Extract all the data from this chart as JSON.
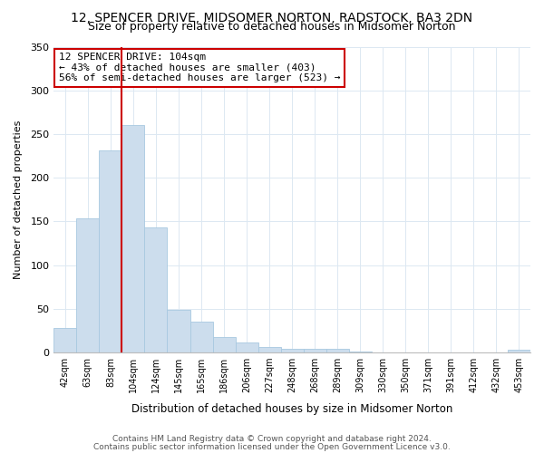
{
  "title": "12, SPENCER DRIVE, MIDSOMER NORTON, RADSTOCK, BA3 2DN",
  "subtitle": "Size of property relative to detached houses in Midsomer Norton",
  "xlabel": "Distribution of detached houses by size in Midsomer Norton",
  "ylabel": "Number of detached properties",
  "bar_labels": [
    "42sqm",
    "63sqm",
    "83sqm",
    "104sqm",
    "124sqm",
    "145sqm",
    "165sqm",
    "186sqm",
    "206sqm",
    "227sqm",
    "248sqm",
    "268sqm",
    "289sqm",
    "309sqm",
    "330sqm",
    "350sqm",
    "371sqm",
    "391sqm",
    "412sqm",
    "432sqm",
    "453sqm"
  ],
  "bar_values": [
    28,
    153,
    231,
    260,
    143,
    49,
    35,
    18,
    11,
    6,
    4,
    4,
    4,
    1,
    0,
    0,
    0,
    0,
    0,
    0,
    3
  ],
  "bar_color": "#ccdded",
  "bar_edge_color": "#a8c8e0",
  "red_line_index": 3,
  "annotation_title": "12 SPENCER DRIVE: 104sqm",
  "annotation_line1": "← 43% of detached houses are smaller (403)",
  "annotation_line2": "56% of semi-detached houses are larger (523) →",
  "annotation_box_color": "#ffffff",
  "annotation_box_edge": "#cc0000",
  "ylim": [
    0,
    350
  ],
  "yticks": [
    0,
    50,
    100,
    150,
    200,
    250,
    300,
    350
  ],
  "footer_line1": "Contains HM Land Registry data © Crown copyright and database right 2024.",
  "footer_line2": "Contains public sector information licensed under the Open Government Licence v3.0.",
  "bg_color": "#ffffff",
  "grid_color": "#dce8f2",
  "title_fontsize": 10,
  "subtitle_fontsize": 9
}
